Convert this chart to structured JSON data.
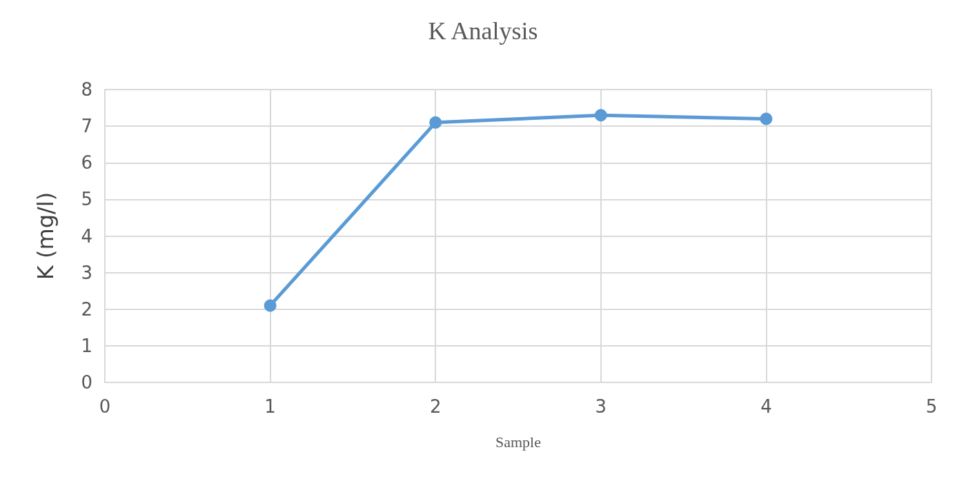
{
  "chart_data": {
    "type": "line",
    "title": "K Analysis",
    "xlabel": "Sample",
    "ylabel": "K (mg/l)",
    "x": [
      1,
      2,
      3,
      4
    ],
    "series": [
      {
        "color": "#5b9bd5",
        "values": [
          2.1,
          7.1,
          7.3,
          7.2
        ]
      }
    ],
    "xlim": [
      0,
      5
    ],
    "xticks": [
      0,
      1,
      2,
      3,
      4,
      5
    ],
    "ylim": [
      0,
      8
    ],
    "yticks": [
      0,
      1,
      2,
      3,
      4,
      5,
      6,
      7,
      8
    ],
    "grid": true,
    "marker": "circle",
    "line_style": "solid"
  }
}
